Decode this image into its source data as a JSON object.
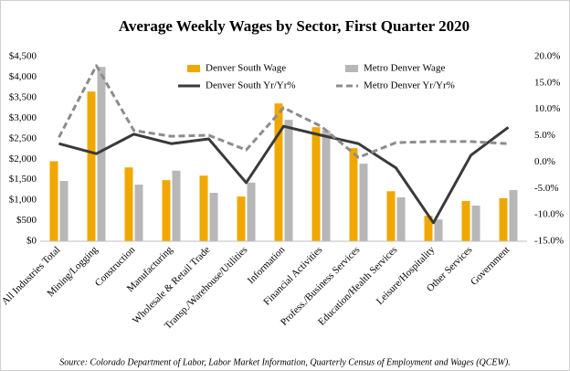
{
  "chart_data": {
    "type": "bar",
    "title": "Average Weekly Wages by Sector, First Quarter 2020",
    "source": "Source: Colorado Department of Labor, Labor Market Information, Quarterly Census of Employment and Wages (QCEW).",
    "categories": [
      "All Industries Total",
      "Mining/Logging",
      "Construction",
      "Manufacturing",
      "Wholesale & Retail Trade",
      "Transp./Warehouse/Utilities",
      "Information",
      "Financial Activities",
      "Profess./Business Services",
      "Education/Health Services",
      "Leisure/Hospitality",
      "Other Services",
      "Government"
    ],
    "series": [
      {
        "name": "Denver South Wage",
        "type": "bar",
        "color": "#f0a800",
        "values": [
          1950,
          3650,
          1800,
          1490,
          1600,
          1090,
          3360,
          2780,
          2270,
          1220,
          620,
          980,
          1050
        ]
      },
      {
        "name": "Metro Denver Wage",
        "type": "bar",
        "color": "#b7b7b7",
        "values": [
          1470,
          4250,
          1380,
          1720,
          1180,
          1430,
          2960,
          2700,
          1890,
          1070,
          530,
          870,
          1250
        ]
      },
      {
        "name": "Denver South Yr/Yr%",
        "type": "line",
        "axis": "y2",
        "color": "#3a3a3a",
        "dashed": false,
        "values": [
          3.5,
          1.6,
          5.3,
          3.5,
          4.4,
          -3.9,
          6.8,
          5.1,
          3.5,
          -1.1,
          -11.5,
          1.3,
          6.6
        ]
      },
      {
        "name": "Metro Denver Yr/Yr%",
        "type": "line",
        "axis": "y2",
        "color": "#8c8c8c",
        "dashed": true,
        "values": [
          4.7,
          18.3,
          6.0,
          4.9,
          5.1,
          2.3,
          10.3,
          6.8,
          0.9,
          3.7,
          3.9,
          3.9,
          3.5
        ]
      }
    ],
    "ylim": [
      0,
      4500
    ],
    "yticks": [
      {
        "value": 0,
        "label": "$0"
      },
      {
        "value": 500,
        "label": "$500"
      },
      {
        "value": 1000,
        "label": "$1,000"
      },
      {
        "value": 1500,
        "label": "$1,500"
      },
      {
        "value": 2000,
        "label": "$2,000"
      },
      {
        "value": 2500,
        "label": "$2,500"
      },
      {
        "value": 3000,
        "label": "$3,000"
      },
      {
        "value": 3500,
        "label": "$3,500"
      },
      {
        "value": 4000,
        "label": "$4,000"
      },
      {
        "value": 4500,
        "label": "$4,500"
      }
    ],
    "y2lim": [
      -15,
      20
    ],
    "y2ticks": [
      {
        "value": -15,
        "label": "-15.0%"
      },
      {
        "value": -10,
        "label": "-10.0%"
      },
      {
        "value": -5,
        "label": "-5.0%"
      },
      {
        "value": 0,
        "label": "0.0%"
      },
      {
        "value": 5,
        "label": "5.0%"
      },
      {
        "value": 10,
        "label": "10.0%"
      },
      {
        "value": 15,
        "label": "15.0%"
      },
      {
        "value": 20,
        "label": "20.0%"
      }
    ],
    "legend": "top"
  }
}
